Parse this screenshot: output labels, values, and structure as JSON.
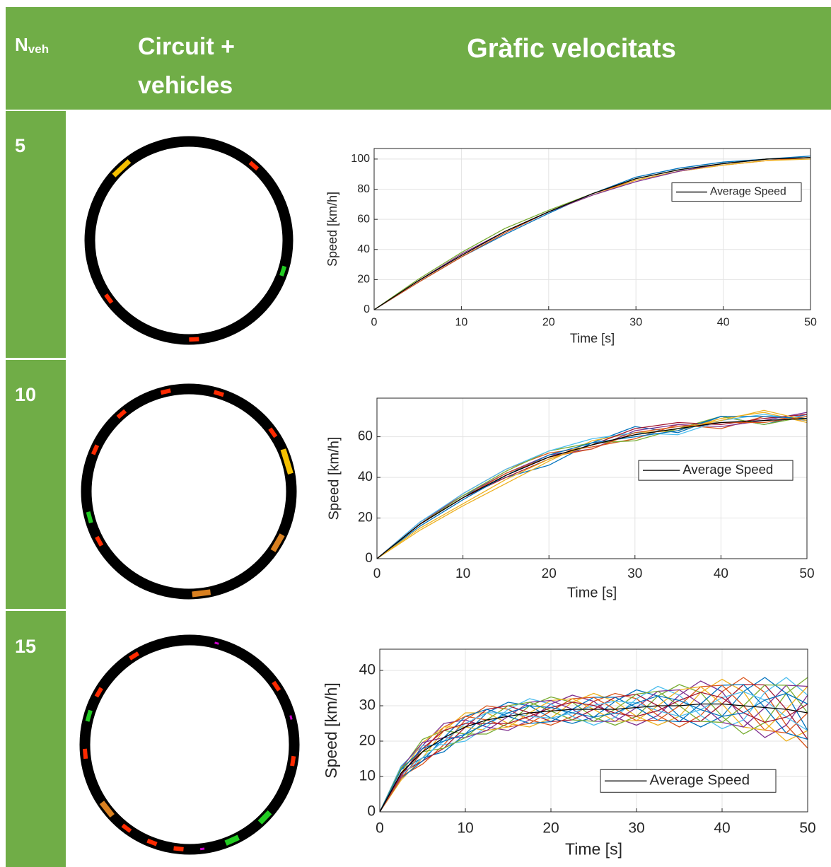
{
  "table": {
    "header": {
      "n": "N",
      "n_sub": "veh",
      "circuit": [
        "Circuit +",
        "vehicles"
      ],
      "chart": "Gràfic velocitats"
    },
    "rows": [
      "5",
      "10",
      "15"
    ]
  },
  "chart_data": [
    {
      "type": "line",
      "xlabel": "Time [s]",
      "ylabel": "Speed [km/h]",
      "grid": true,
      "legend": "upper right",
      "x": [
        0,
        5,
        10,
        15,
        20,
        25,
        30,
        35,
        40,
        45,
        50
      ],
      "xlim": [
        0,
        50
      ],
      "xticks": [
        0,
        10,
        20,
        30,
        40,
        50
      ],
      "ylim": [
        0,
        107
      ],
      "yticks": [
        0,
        20,
        40,
        60,
        80,
        100
      ],
      "series": [
        {
          "color": "#0072BD",
          "values": [
            0,
            18,
            35,
            50,
            64,
            77,
            88,
            94,
            98,
            100,
            102
          ]
        },
        {
          "color": "#D95319",
          "values": [
            0,
            18,
            35,
            51,
            65,
            77,
            86,
            92,
            96,
            99,
            101
          ]
        },
        {
          "color": "#EDB120",
          "values": [
            0,
            19,
            36,
            52,
            65,
            76,
            86,
            92,
            96,
            99,
            100
          ]
        },
        {
          "color": "#7E2F8E",
          "values": [
            0,
            19,
            37,
            52,
            65,
            76,
            85,
            92,
            97,
            100,
            101
          ]
        },
        {
          "color": "#77AC30",
          "values": [
            0,
            20,
            38,
            54,
            66,
            77,
            87,
            93,
            97,
            100,
            101
          ]
        },
        {
          "name": "Average Speed",
          "color": "#000000",
          "values": [
            0,
            19,
            36,
            52,
            65,
            77,
            87,
            93,
            97,
            100,
            101
          ]
        }
      ]
    },
    {
      "type": "line",
      "xlabel": "Time [s]",
      "ylabel": "Speed [km/h]",
      "grid": true,
      "legend": "center right",
      "x": [
        0,
        5,
        10,
        15,
        20,
        25,
        30,
        35,
        40,
        45,
        50
      ],
      "xlim": [
        0,
        50
      ],
      "xticks": [
        0,
        10,
        20,
        30,
        40,
        50
      ],
      "ylim": [
        0,
        79
      ],
      "yticks": [
        0,
        20,
        40,
        60
      ],
      "series": [
        {
          "color": "#0072BD",
          "values": [
            0,
            18,
            31,
            40,
            46,
            57,
            65,
            62,
            70,
            66,
            71
          ]
        },
        {
          "color": "#D95319",
          "values": [
            0,
            17,
            32,
            44,
            52,
            55,
            59,
            66,
            64,
            70,
            68
          ]
        },
        {
          "color": "#EDB120",
          "values": [
            0,
            14,
            26,
            37,
            48,
            58,
            62,
            63,
            69,
            72,
            67
          ]
        },
        {
          "color": "#7E2F8E",
          "values": [
            0,
            18,
            31,
            42,
            51,
            54,
            63,
            66,
            65,
            68,
            72
          ]
        },
        {
          "color": "#77AC30",
          "values": [
            0,
            17,
            31,
            43,
            53,
            57,
            58,
            64,
            70,
            66,
            70
          ]
        },
        {
          "color": "#4DBEEE",
          "values": [
            0,
            18,
            32,
            44,
            53,
            59,
            62,
            61,
            68,
            71,
            68
          ]
        },
        {
          "color": "#A2142F",
          "values": [
            0,
            17,
            30,
            40,
            49,
            56,
            64,
            67,
            66,
            69,
            71
          ]
        },
        {
          "color": "#0072BD",
          "values": [
            0,
            16,
            29,
            41,
            51,
            57,
            60,
            63,
            70,
            70,
            69
          ]
        },
        {
          "color": "#D95319",
          "values": [
            0,
            17,
            30,
            42,
            50,
            54,
            62,
            65,
            67,
            67,
            70
          ]
        },
        {
          "color": "#EDB120",
          "values": [
            0,
            15,
            27,
            39,
            49,
            56,
            61,
            64,
            68,
            73,
            68
          ]
        },
        {
          "name": "Average Speed",
          "color": "#000000",
          "values": [
            0,
            17,
            30,
            41,
            50,
            56,
            61,
            64,
            67,
            68,
            69
          ]
        }
      ]
    },
    {
      "type": "line",
      "xlabel": "Time [s]",
      "ylabel": "Speed [km/h]",
      "grid": true,
      "legend": "lower right",
      "x": [
        0,
        2.5,
        5,
        7.5,
        10,
        12.5,
        15,
        17.5,
        20,
        22.5,
        25,
        27.5,
        30,
        32.5,
        35,
        37.5,
        40,
        42.5,
        45,
        47.5,
        50
      ],
      "xlim": [
        0,
        50
      ],
      "xticks": [
        0,
        10,
        20,
        30,
        40,
        50
      ],
      "ylim": [
        0,
        46
      ],
      "yticks": [
        0,
        10,
        20,
        30,
        40
      ],
      "series": [
        {
          "color": "#0072BD",
          "values": [
            0,
            12,
            15.25,
            17,
            22,
            28,
            31,
            30,
            26.5,
            25,
            26.75,
            31.25,
            34.5,
            32.75,
            27,
            24,
            27,
            34,
            38,
            33.5,
            23
          ]
        },
        {
          "color": "#D95319",
          "values": [
            0,
            10,
            13.5,
            19,
            26,
            30,
            29,
            26,
            24.5,
            27,
            31.25,
            33.5,
            32,
            27.25,
            24,
            27.25,
            34,
            38,
            33.75,
            24.5,
            18
          ]
        },
        {
          "color": "#EDB120",
          "values": [
            0,
            9,
            15.25,
            23,
            28,
            28,
            25,
            24,
            26.5,
            31,
            33.5,
            31.25,
            27,
            24.5,
            27,
            33.75,
            37.5,
            34,
            25.25,
            20,
            23
          ]
        },
        {
          "color": "#7E2F8E",
          "values": [
            0,
            10,
            18.75,
            25,
            26,
            24,
            23,
            26,
            30.5,
            33,
            31.25,
            26.75,
            24.5,
            27.25,
            33,
            37,
            34,
            26,
            21,
            24.5,
            33
          ]
        },
        {
          "color": "#77AC30",
          "values": [
            0,
            12,
            20.5,
            23,
            22,
            22,
            25,
            30,
            32.5,
            31,
            26.75,
            24.5,
            27,
            32.75,
            36,
            33.75,
            27,
            22,
            25.25,
            33.5,
            38
          ]
        },
        {
          "color": "#4DBEEE",
          "values": [
            0,
            13,
            18.75,
            19,
            20,
            24,
            29,
            32,
            30.5,
            27,
            24.5,
            26.75,
            32,
            35.5,
            33,
            27.25,
            23.5,
            26,
            33.75,
            38,
            33
          ]
        },
        {
          "color": "#A2142F",
          "values": [
            0,
            11,
            14.4,
            18,
            24,
            29,
            30,
            28,
            25.5,
            26,
            29,
            32.4,
            33.25,
            30,
            25.5,
            25.6,
            30.5,
            36,
            35.9,
            29,
            20.5
          ]
        },
        {
          "color": "#0072BD",
          "values": [
            0,
            9.5,
            14.4,
            21,
            27,
            29,
            27,
            25,
            25.5,
            29,
            32.4,
            32.4,
            29.5,
            25.9,
            25.5,
            30.5,
            35.8,
            36,
            29.5,
            22.3,
            20.5
          ]
        },
        {
          "color": "#D95319",
          "values": [
            0,
            9.5,
            17,
            24,
            27,
            26,
            24,
            25,
            28.5,
            32,
            32.4,
            29,
            25.8,
            25.9,
            30,
            35.4,
            35.8,
            30,
            23.1,
            22.3,
            28
          ]
        },
        {
          "color": "#EDB120",
          "values": [
            0,
            11,
            19.6,
            24,
            24,
            23,
            24,
            28,
            31.5,
            32,
            29,
            25.6,
            25.8,
            30,
            34.5,
            35.4,
            30.5,
            24,
            23.1,
            29,
            35.5
          ]
        },
        {
          "color": "#7E2F8E",
          "values": [
            0,
            12.5,
            19.6,
            21,
            21,
            23,
            27,
            31,
            31.5,
            29,
            25.6,
            25.6,
            29.5,
            34.1,
            34.5,
            30.5,
            25.3,
            24,
            29.5,
            35.8,
            35.5
          ]
        },
        {
          "color": "#77AC30",
          "values": [
            0,
            12.5,
            17,
            18,
            21,
            26,
            30,
            31,
            28.5,
            26,
            25.6,
            29,
            33.3,
            34.1,
            30,
            25.6,
            25.3,
            30,
            35.9,
            35.8,
            28
          ]
        },
        {
          "color": "#4DBEEE",
          "values": [
            0,
            10.5,
            15.3,
            20,
            25,
            28,
            28,
            27,
            26.5,
            28,
            30.1,
            31.3,
            30.8,
            28.6,
            27,
            28.9,
            32.3,
            34,
            31.6,
            26.8,
            23
          ]
        },
        {
          "color": "#A2142F",
          "values": [
            0,
            10.5,
            17.9,
            23,
            25,
            25,
            25,
            27,
            29.5,
            31,
            30.1,
            27.9,
            27,
            28.6,
            31.5,
            33.8,
            32.3,
            28,
            25.3,
            26.8,
            30.5
          ]
        },
        {
          "color": "#0072BD",
          "values": [
            0,
            12,
            17.9,
            20,
            22,
            25,
            28,
            30,
            29.5,
            28,
            26.8,
            27.9,
            30.8,
            32.8,
            31.5,
            28.9,
            27,
            28,
            31.6,
            33.5,
            30.5
          ]
        },
        {
          "name": "Average Speed",
          "color": "#000000",
          "values": [
            0,
            11,
            17,
            21,
            24,
            26,
            27,
            28,
            28.5,
            29,
            29,
            29,
            29.5,
            30,
            30,
            30.5,
            30.5,
            30,
            29.5,
            29,
            28
          ]
        }
      ]
    }
  ]
}
